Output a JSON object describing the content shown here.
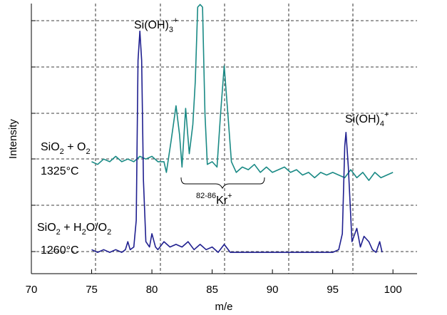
{
  "chart_data": {
    "type": "line",
    "xlabel": "m/e",
    "ylabel": "Intensity",
    "xlim": [
      70,
      102
    ],
    "ylim": [
      0,
      100
    ],
    "grid": true,
    "x_ticks": [
      70,
      75,
      80,
      85,
      90,
      95,
      100
    ],
    "x_tick_labels": [
      "70",
      "75",
      "80",
      "85",
      "90",
      "95",
      "100"
    ],
    "series": [
      {
        "color": "#1a8a85",
        "points": [
          [
            75.0,
            42
          ],
          [
            75.5,
            41
          ],
          [
            76.0,
            43
          ],
          [
            76.5,
            42
          ],
          [
            77.0,
            44
          ],
          [
            77.5,
            42
          ],
          [
            78.0,
            43
          ],
          [
            78.5,
            42
          ],
          [
            79.0,
            44
          ],
          [
            79.5,
            43
          ],
          [
            80.0,
            44
          ],
          [
            80.5,
            42
          ],
          [
            81.0,
            42
          ],
          [
            81.2,
            38
          ],
          [
            81.6,
            50
          ],
          [
            82.0,
            63
          ],
          [
            82.3,
            52
          ],
          [
            82.5,
            40
          ],
          [
            82.8,
            62
          ],
          [
            83.1,
            45
          ],
          [
            83.4,
            56
          ],
          [
            83.6,
            72
          ],
          [
            83.8,
            100
          ],
          [
            84.0,
            101
          ],
          [
            84.2,
            100
          ],
          [
            84.4,
            60
          ],
          [
            84.6,
            41
          ],
          [
            85.0,
            42
          ],
          [
            85.4,
            40
          ],
          [
            85.7,
            60
          ],
          [
            86.0,
            78
          ],
          [
            86.3,
            60
          ],
          [
            86.6,
            42
          ],
          [
            87.0,
            38
          ],
          [
            87.5,
            40
          ],
          [
            88.0,
            39
          ],
          [
            88.5,
            41
          ],
          [
            89.0,
            38
          ],
          [
            89.5,
            40
          ],
          [
            90.0,
            38
          ],
          [
            90.5,
            39
          ],
          [
            91.0,
            40
          ],
          [
            91.5,
            38
          ],
          [
            92.0,
            39
          ],
          [
            92.5,
            37
          ],
          [
            93.0,
            38
          ],
          [
            93.5,
            36
          ],
          [
            94.0,
            38
          ],
          [
            94.5,
            37
          ],
          [
            95.0,
            38
          ],
          [
            95.5,
            37
          ],
          [
            96.0,
            36
          ],
          [
            96.5,
            39
          ],
          [
            97.0,
            36
          ],
          [
            97.5,
            38
          ],
          [
            98.0,
            35
          ],
          [
            98.5,
            38
          ],
          [
            99.0,
            36
          ],
          [
            99.5,
            37
          ],
          [
            100.0,
            38
          ]
        ]
      },
      {
        "color": "#1f1f8f",
        "points": [
          [
            75.0,
            9
          ],
          [
            75.5,
            8
          ],
          [
            76.0,
            9
          ],
          [
            76.5,
            8
          ],
          [
            77.0,
            9
          ],
          [
            77.5,
            8
          ],
          [
            77.8,
            9
          ],
          [
            78.0,
            12
          ],
          [
            78.2,
            9
          ],
          [
            78.5,
            10
          ],
          [
            78.7,
            20
          ],
          [
            78.85,
            80
          ],
          [
            79.0,
            91
          ],
          [
            79.15,
            80
          ],
          [
            79.3,
            35
          ],
          [
            79.5,
            12
          ],
          [
            79.8,
            10
          ],
          [
            80.0,
            15
          ],
          [
            80.3,
            10
          ],
          [
            80.5,
            9
          ],
          [
            81.0,
            12
          ],
          [
            81.5,
            10
          ],
          [
            82.0,
            11
          ],
          [
            82.5,
            10
          ],
          [
            83.0,
            12
          ],
          [
            83.5,
            9
          ],
          [
            84.0,
            11
          ],
          [
            84.5,
            9
          ],
          [
            85.0,
            10
          ],
          [
            85.5,
            8
          ],
          [
            86.0,
            11
          ],
          [
            86.5,
            8
          ],
          [
            87.0,
            8
          ],
          [
            87.5,
            8
          ],
          [
            88.0,
            8
          ],
          [
            88.5,
            8
          ],
          [
            89.0,
            8
          ],
          [
            89.5,
            8
          ],
          [
            90.0,
            8
          ],
          [
            90.5,
            8
          ],
          [
            91.0,
            8
          ],
          [
            91.5,
            8
          ],
          [
            92.0,
            8
          ],
          [
            92.5,
            8
          ],
          [
            93.0,
            8
          ],
          [
            93.5,
            8
          ],
          [
            94.0,
            8
          ],
          [
            94.5,
            8
          ],
          [
            95.0,
            8
          ],
          [
            95.5,
            9
          ],
          [
            95.8,
            15
          ],
          [
            96.0,
            48
          ],
          [
            96.1,
            53
          ],
          [
            96.3,
            40
          ],
          [
            96.6,
            12
          ],
          [
            97.0,
            17
          ],
          [
            97.3,
            10
          ],
          [
            97.6,
            14
          ],
          [
            98.0,
            12
          ],
          [
            98.3,
            9
          ],
          [
            98.6,
            8
          ],
          [
            98.9,
            12
          ],
          [
            99.1,
            8
          ]
        ]
      }
    ],
    "annotations": {
      "siohh3": {
        "base": "Si(OH)",
        "sub": "3",
        "sup": "+"
      },
      "siohh4": {
        "base": "Si(OH)",
        "sub": "4",
        "sup": "+"
      },
      "kr": {
        "pre": "82-86",
        "base": "Kr",
        "sup": "+"
      },
      "cond1": {
        "a": "SiO",
        "sub": "2",
        "b": " + O",
        "sub2": "2",
        "temp": "1325°C"
      },
      "cond2": {
        "a": "SiO",
        "sub": "2",
        "b": " + H",
        "sub2": "2",
        "c": "O/O",
        "sub3": "2",
        "temp": "1260°C"
      }
    }
  }
}
